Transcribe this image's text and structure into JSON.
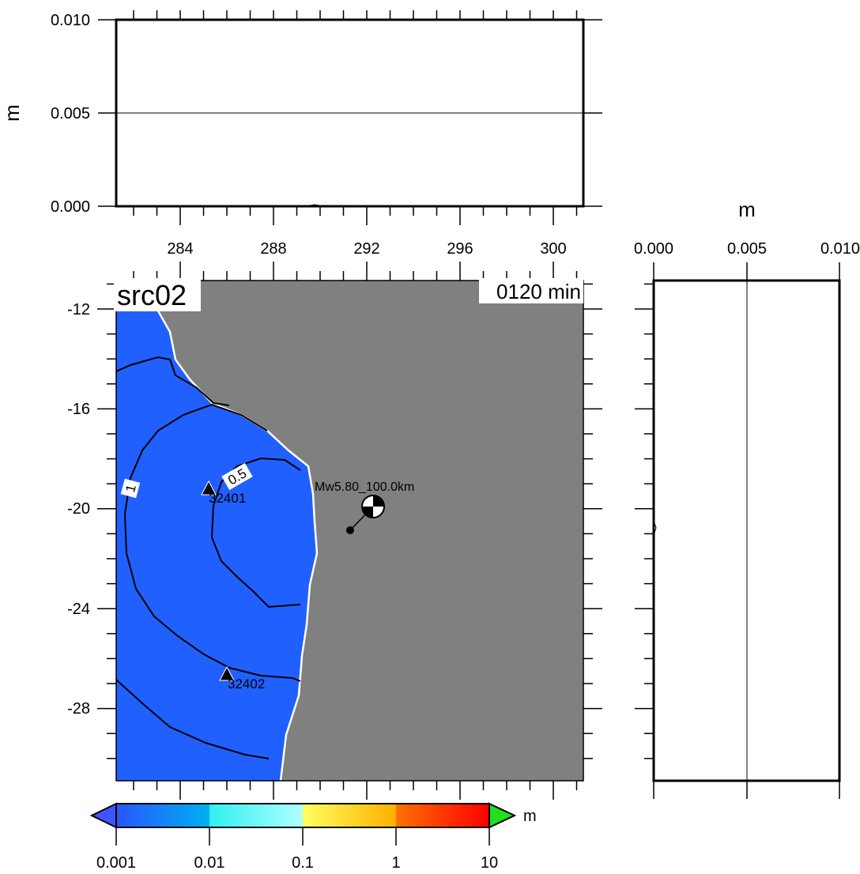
{
  "top_panel": {
    "y_unit": "m",
    "y_ticks": [
      "0.010",
      "0.005",
      "0.000"
    ],
    "x_ticks": [
      "284",
      "288",
      "292",
      "296",
      "300"
    ]
  },
  "right_panel": {
    "x_unit": "m",
    "x_ticks": [
      "0.000",
      "0.005",
      "0.010"
    ]
  },
  "map": {
    "source_label": "src02",
    "time_label": "0120 min",
    "lat_ticks": [
      "-12",
      "-16",
      "-20",
      "-24",
      "-28"
    ],
    "lon_ticks": [
      "284",
      "288",
      "292",
      "296",
      "300"
    ],
    "ocean_color": "#2060ff",
    "land_color": "#808080",
    "contour_labels": [
      "1",
      "0.5"
    ],
    "stations": [
      {
        "id": "32401"
      },
      {
        "id": "32402"
      }
    ],
    "earthquake_label": "Mw5.80_100.0km"
  },
  "colorbar": {
    "unit": "m",
    "tick_labels": [
      "0.001",
      "0.01",
      "0.1",
      "1",
      "10"
    ]
  }
}
